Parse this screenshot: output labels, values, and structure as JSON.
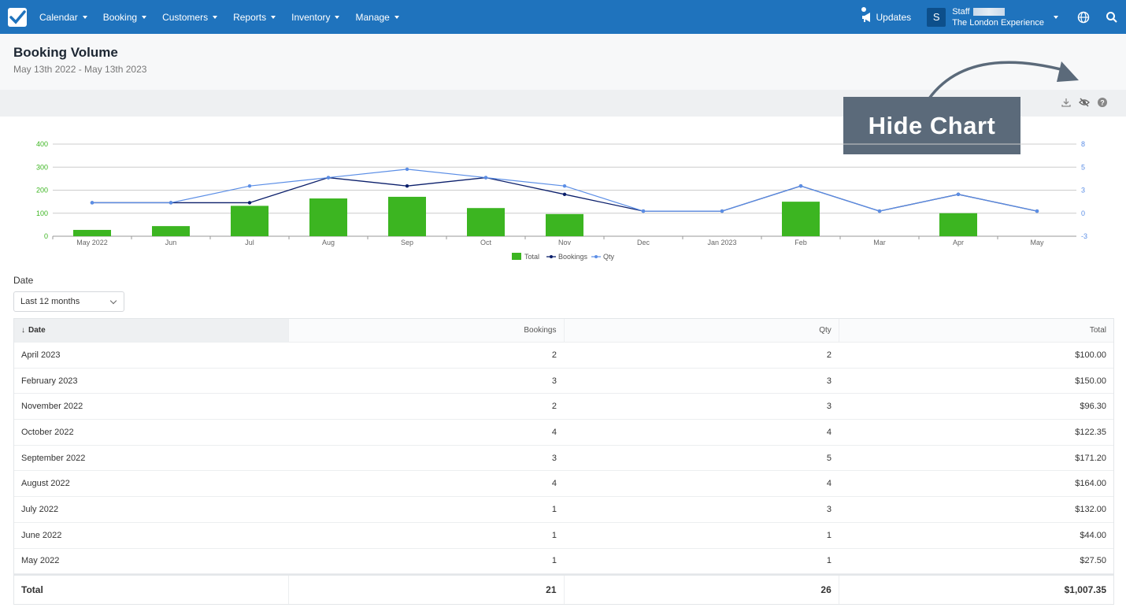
{
  "nav": {
    "items": [
      "Calendar",
      "Booking",
      "Customers",
      "Reports",
      "Inventory",
      "Manage"
    ],
    "updates_label": "Updates",
    "avatar_letter": "S",
    "staff_label": "Staff",
    "company": "The London Experience"
  },
  "header": {
    "title": "Booking Volume",
    "date_range": "May 13th 2022 - May 13th 2023"
  },
  "callout": {
    "text": "Hide Chart"
  },
  "chart_data": {
    "type": "bar",
    "categories": [
      "May 2022",
      "Jun",
      "Jul",
      "Aug",
      "Sep",
      "Oct",
      "Nov",
      "Dec",
      "Jan 2023",
      "Feb",
      "Mar",
      "Apr",
      "May"
    ],
    "series": [
      {
        "name": "Total",
        "type": "bar",
        "axis": "left",
        "values": [
          27.5,
          44,
          132,
          164,
          171.2,
          122.35,
          96.3,
          0,
          0,
          150,
          0,
          100,
          0
        ]
      },
      {
        "name": "Bookings",
        "type": "line",
        "axis": "right",
        "values": [
          1,
          1,
          1,
          4,
          3,
          4,
          2,
          0,
          0,
          3,
          0,
          2,
          0
        ]
      },
      {
        "name": "Qty",
        "type": "line",
        "axis": "right",
        "values": [
          1,
          1,
          3,
          4,
          5,
          4,
          3,
          0,
          0,
          3,
          0,
          2,
          0
        ]
      }
    ],
    "left_ticks": [
      "400",
      "300",
      "200",
      "100",
      "0"
    ],
    "right_ticks": [
      "8",
      "5",
      "3",
      "0",
      "-3"
    ],
    "ylim_left": [
      0,
      400
    ],
    "ylim_right": [
      -3,
      8
    ],
    "grid": true,
    "legend_position": "bottom",
    "colors": {
      "Total": "#3cb521",
      "Bookings": "#0b1f6b",
      "Qty": "#5b8ee6"
    }
  },
  "filter": {
    "label": "Date",
    "value": "Last 12 months"
  },
  "table": {
    "columns": [
      "Date",
      "Bookings",
      "Qty",
      "Total"
    ],
    "sort_indicator": "↓",
    "rows": [
      [
        "April 2023",
        "2",
        "2",
        "$100.00"
      ],
      [
        "February 2023",
        "3",
        "3",
        "$150.00"
      ],
      [
        "November 2022",
        "2",
        "3",
        "$96.30"
      ],
      [
        "October 2022",
        "4",
        "4",
        "$122.35"
      ],
      [
        "September 2022",
        "3",
        "5",
        "$171.20"
      ],
      [
        "August 2022",
        "4",
        "4",
        "$164.00"
      ],
      [
        "July 2022",
        "1",
        "3",
        "$132.00"
      ],
      [
        "June 2022",
        "1",
        "1",
        "$44.00"
      ],
      [
        "May 2022",
        "1",
        "1",
        "$27.50"
      ]
    ],
    "total": [
      "Total",
      "21",
      "26",
      "$1,007.35"
    ]
  }
}
